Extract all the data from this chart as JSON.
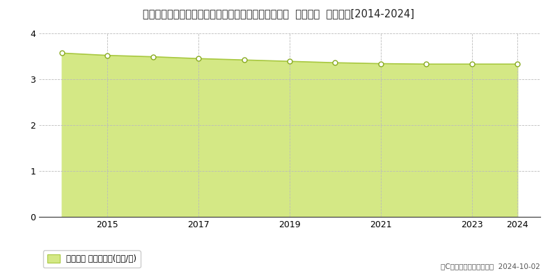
{
  "title": "福島県耶麻郡磐梯町大字磐梯字南道割堂１８２番３９  基準地価  地価推移[2014-2024]",
  "years": [
    2014,
    2015,
    2016,
    2017,
    2018,
    2019,
    2020,
    2021,
    2022,
    2023,
    2024
  ],
  "values": [
    3.57,
    3.52,
    3.49,
    3.45,
    3.42,
    3.39,
    3.36,
    3.34,
    3.33,
    3.33,
    3.33
  ],
  "line_color": "#a8c840",
  "fill_color": "#d4e885",
  "marker_facecolor": "#ffffff",
  "marker_edgecolor": "#88aa20",
  "ylim": [
    0,
    4
  ],
  "yticks": [
    0,
    1,
    2,
    3,
    4
  ],
  "grid_color": "#bbbbbb",
  "bg_color": "#ffffff",
  "legend_label": "基準地価 平均坪単価(万円/坪)",
  "copyright_text": "（C）土地価格ドットコム  2024-10-02",
  "title_fontsize": 10.5,
  "axis_fontsize": 9,
  "legend_fontsize": 8.5,
  "copyright_fontsize": 7.5,
  "xtick_years": [
    2015,
    2017,
    2019,
    2021,
    2023,
    2024
  ]
}
